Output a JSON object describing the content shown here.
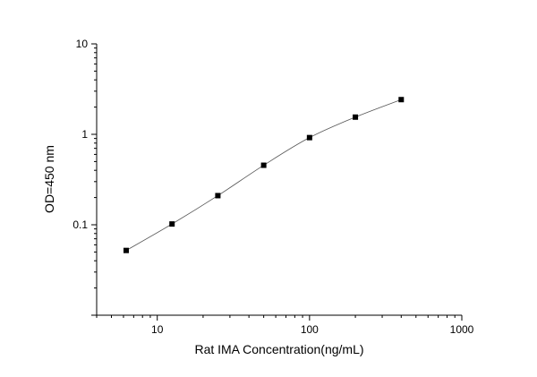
{
  "chart_data": {
    "type": "scatter",
    "title": "",
    "xlabel": "Rat IMA Concentration(ng/mL)",
    "ylabel": "OD=450 nm",
    "x_scale": "log",
    "y_scale": "log",
    "xlim": [
      4,
      1000
    ],
    "ylim": [
      0.01,
      10
    ],
    "x_ticks": [
      10,
      100,
      1000
    ],
    "x_tick_labels": [
      "10",
      "100",
      "1000"
    ],
    "y_ticks": [
      0.1,
      1,
      10
    ],
    "y_tick_labels": [
      "0.1",
      "1",
      "10"
    ],
    "grid": false,
    "legend": false,
    "fit_line": true,
    "marker_color": "#000000",
    "line_color": "#555555",
    "series": [
      {
        "x": [
          6.25,
          12.5,
          25,
          50,
          100,
          200,
          400
        ],
        "y": [
          0.052,
          0.102,
          0.21,
          0.455,
          0.92,
          1.55,
          2.42
        ]
      }
    ]
  }
}
